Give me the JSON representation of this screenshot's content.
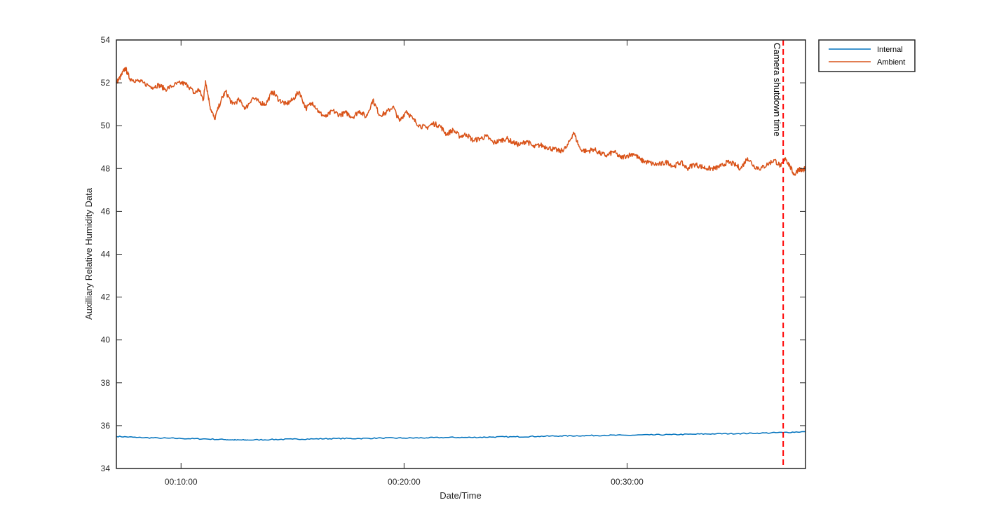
{
  "chart_data": {
    "type": "line",
    "xlabel": "Date/Time",
    "ylabel": "Auxilliary Relative Humidity Data",
    "x_unit": "minutes",
    "xlim": [
      7.1,
      38.0
    ],
    "ylim": [
      34,
      54
    ],
    "yticks": [
      34,
      36,
      38,
      40,
      42,
      44,
      46,
      48,
      50,
      52,
      54
    ],
    "xticks": [
      {
        "value": 10,
        "label": "00:10:00"
      },
      {
        "value": 20,
        "label": "00:20:00"
      },
      {
        "value": 30,
        "label": "00:30:00"
      }
    ],
    "grid": false,
    "legend": "outside-top-right",
    "annotation": {
      "x": 37.0,
      "label": "Camera shutdown time",
      "color": "#ff0000"
    },
    "series": [
      {
        "name": "Internal",
        "color": "#0072bd",
        "x": [
          7.1,
          8,
          9,
          10,
          11,
          12,
          12.5,
          13,
          14,
          15,
          16,
          17,
          18,
          19,
          20,
          21,
          22,
          23,
          24,
          25,
          26,
          27,
          28,
          29,
          30,
          31,
          32,
          33,
          34,
          35,
          36,
          37,
          38
        ],
        "y": [
          35.5,
          35.45,
          35.42,
          35.4,
          35.38,
          35.35,
          35.33,
          35.33,
          35.35,
          35.37,
          35.38,
          35.4,
          35.4,
          35.42,
          35.42,
          35.43,
          35.45,
          35.45,
          35.47,
          35.48,
          35.5,
          35.52,
          35.53,
          35.55,
          35.55,
          35.57,
          35.58,
          35.6,
          35.62,
          35.63,
          35.65,
          35.68,
          35.72
        ]
      },
      {
        "name": "Ambient",
        "color": "#d95319",
        "x": [
          7.1,
          7.3,
          7.5,
          7.7,
          8.0,
          8.3,
          8.7,
          9.0,
          9.3,
          9.7,
          10.0,
          10.3,
          10.6,
          10.8,
          11.0,
          11.1,
          11.3,
          11.5,
          11.8,
          12.0,
          12.3,
          12.6,
          12.9,
          13.2,
          13.5,
          13.8,
          14.1,
          14.4,
          14.7,
          15.0,
          15.3,
          15.6,
          15.9,
          16.2,
          16.5,
          16.8,
          17.1,
          17.4,
          17.7,
          18.0,
          18.3,
          18.6,
          18.9,
          19.2,
          19.5,
          19.8,
          20.1,
          20.4,
          20.7,
          21.0,
          21.3,
          21.6,
          21.9,
          22.2,
          22.5,
          22.8,
          23.1,
          23.4,
          23.7,
          24.0,
          24.3,
          24.6,
          24.9,
          25.2,
          25.5,
          25.8,
          26.1,
          26.4,
          26.7,
          27.0,
          27.3,
          27.6,
          27.9,
          28.2,
          28.5,
          28.8,
          29.1,
          29.4,
          29.7,
          30.0,
          30.3,
          30.6,
          30.9,
          31.2,
          31.5,
          31.8,
          32.1,
          32.4,
          32.7,
          33.0,
          33.3,
          33.6,
          33.9,
          34.2,
          34.5,
          34.8,
          35.1,
          35.4,
          35.7,
          36.0,
          36.3,
          36.6,
          36.9,
          37.1,
          37.3,
          37.5,
          37.7,
          37.85,
          38.0
        ],
        "y": [
          52.0,
          52.3,
          52.7,
          52.2,
          52.1,
          52.0,
          51.8,
          51.9,
          51.7,
          51.9,
          52.0,
          51.9,
          51.5,
          51.7,
          51.2,
          52.1,
          50.9,
          50.3,
          51.2,
          51.6,
          51.0,
          51.2,
          50.8,
          51.3,
          51.1,
          51.0,
          51.6,
          51.2,
          51.0,
          51.2,
          51.6,
          50.8,
          51.1,
          50.6,
          50.4,
          50.7,
          50.5,
          50.6,
          50.4,
          50.7,
          50.4,
          51.2,
          50.5,
          50.6,
          50.9,
          50.2,
          50.7,
          50.3,
          50.0,
          49.9,
          50.1,
          50.0,
          49.6,
          49.8,
          49.5,
          49.6,
          49.3,
          49.4,
          49.5,
          49.2,
          49.3,
          49.4,
          49.2,
          49.1,
          49.3,
          49.0,
          49.1,
          49.0,
          48.9,
          48.8,
          49.0,
          49.7,
          48.9,
          48.8,
          48.9,
          48.7,
          48.6,
          48.8,
          48.5,
          48.6,
          48.7,
          48.4,
          48.3,
          48.2,
          48.2,
          48.3,
          48.1,
          48.3,
          48.0,
          48.2,
          48.1,
          48.0,
          48.0,
          48.1,
          48.3,
          48.2,
          48.0,
          48.5,
          48.1,
          48.0,
          48.2,
          48.4,
          48.1,
          48.5,
          48.1,
          47.7,
          48.0,
          47.9,
          48.0
        ]
      }
    ]
  }
}
